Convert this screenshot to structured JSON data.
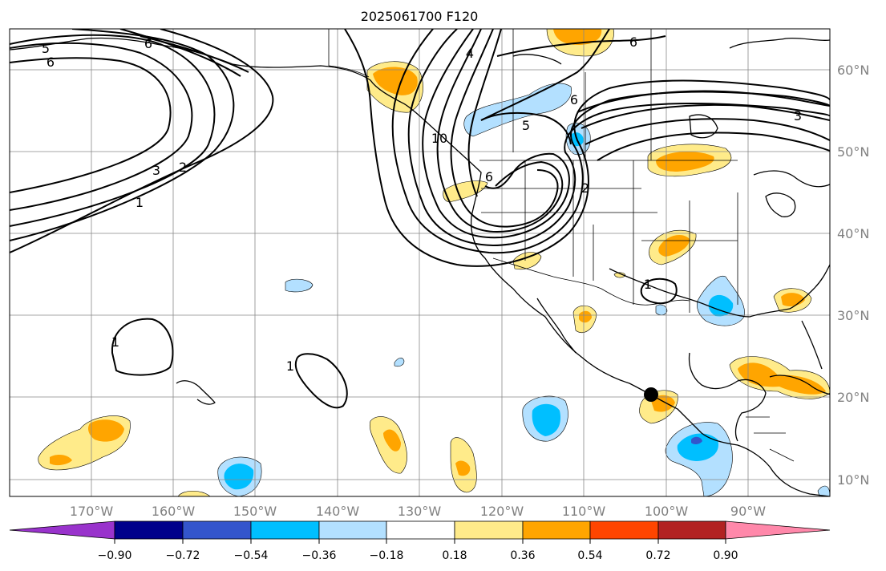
{
  "title": "2025061700 F120",
  "lon_labels": [
    "170°W",
    "160°W",
    "150°W",
    "140°W",
    "130°W",
    "120°W",
    "110°W",
    "100°W",
    "90°W"
  ],
  "lat_labels": [
    "60°N",
    "50°N",
    "40°N",
    "30°N",
    "20°N",
    "10°N"
  ],
  "colorbar": {
    "tick_labels": [
      "−0.90",
      "−0.72",
      "−0.54",
      "−0.36",
      "−0.18",
      "0.18",
      "0.36",
      "0.54",
      "0.72",
      "0.90"
    ],
    "colors": [
      "#9933cc",
      "#00008b",
      "#3355cc",
      "#00bfff",
      "#b3e0ff",
      "#ffffff",
      "#ffeb8a",
      "#ffa500",
      "#ff4500",
      "#b22222",
      "#ff88aa"
    ]
  },
  "contour_labels": [
    "5",
    "6",
    "3",
    "2",
    "1",
    "4",
    "5",
    "6",
    "6",
    "10",
    "6",
    "2",
    "3",
    "1",
    "1",
    "1",
    "6"
  ],
  "marker": "point-marker"
}
